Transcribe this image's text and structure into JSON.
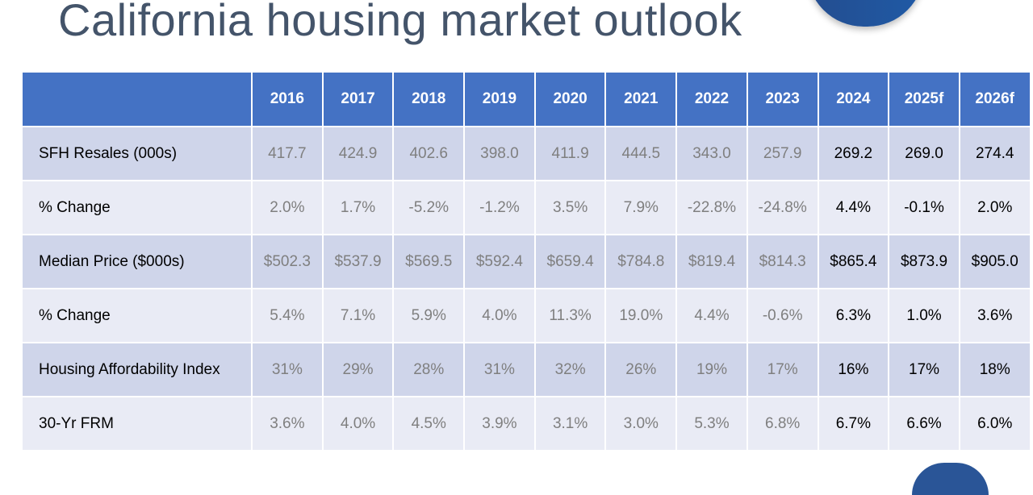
{
  "title": "California housing market outlook",
  "colors": {
    "header": "#4472c4",
    "row_dark": "#cfd5ea",
    "row_light": "#e9ebf5",
    "historical_text": "#7f7f7f",
    "current_text": "#000000"
  },
  "table": {
    "columns": [
      "",
      "2016",
      "2017",
      "2018",
      "2019",
      "2020",
      "2021",
      "2022",
      "2023",
      "2024",
      "2025f",
      "2026f"
    ],
    "rows": [
      {
        "label": "SFH Resales (000s)",
        "values": [
          "417.7",
          "424.9",
          "402.6",
          "398.0",
          "411.9",
          "444.5",
          "343.0",
          "257.9",
          "269.2",
          "269.0",
          "274.4"
        ]
      },
      {
        "label": "% Change",
        "values": [
          "2.0%",
          "1.7%",
          "-5.2%",
          "-1.2%",
          "3.5%",
          "7.9%",
          "-22.8%",
          "-24.8%",
          "4.4%",
          "-0.1%",
          "2.0%"
        ]
      },
      {
        "label": "Median Price ($000s)",
        "values": [
          "$502.3",
          "$537.9",
          "$569.5",
          "$592.4",
          "$659.4",
          "$784.8",
          "$819.4",
          "$814.3",
          "$865.4",
          "$873.9",
          "$905.0"
        ]
      },
      {
        "label": "% Change",
        "values": [
          "5.4%",
          "7.1%",
          "5.9%",
          "4.0%",
          "11.3%",
          "19.0%",
          "4.4%",
          "-0.6%",
          "6.3%",
          "1.0%",
          "3.6%"
        ]
      },
      {
        "label": "Housing Affordability Index",
        "values": [
          "31%",
          "29%",
          "28%",
          "31%",
          "32%",
          "26%",
          "19%",
          "17%",
          "16%",
          "17%",
          "18%"
        ]
      },
      {
        "label": "30-Yr FRM",
        "values": [
          "3.6%",
          "4.0%",
          "4.5%",
          "3.9%",
          "3.1%",
          "3.0%",
          "5.3%",
          "6.8%",
          "6.7%",
          "6.6%",
          "6.0%"
        ]
      }
    ]
  }
}
